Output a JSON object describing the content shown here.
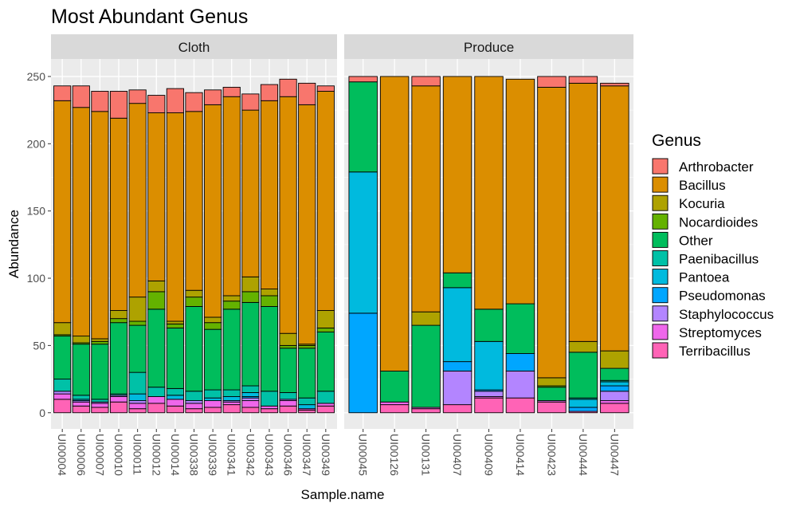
{
  "chart_data": {
    "type": "bar",
    "stacked": true,
    "title": "Most Abundant Genus",
    "xlabel": "Sample.name",
    "ylabel": "Abundance",
    "ylim": [
      -12,
      263
    ],
    "yticks": [
      0,
      50,
      100,
      150,
      200,
      250
    ],
    "grid": true,
    "legend": {
      "title": "Genus",
      "position": "right",
      "items": [
        {
          "name": "Arthrobacter",
          "color": "#F8766D"
        },
        {
          "name": "Bacillus",
          "color": "#DB8E00"
        },
        {
          "name": "Kocuria",
          "color": "#AEA200"
        },
        {
          "name": "Nocardioides",
          "color": "#64B200"
        },
        {
          "name": "Other",
          "color": "#00BD5C"
        },
        {
          "name": "Paenibacillus",
          "color": "#00C1A7"
        },
        {
          "name": "Pantoea",
          "color": "#00BADE"
        },
        {
          "name": "Pseudomonas",
          "color": "#00A6FF"
        },
        {
          "name": "Staphylococcus",
          "color": "#B385FF"
        },
        {
          "name": "Streptomyces",
          "color": "#EF67EB"
        },
        {
          "name": "Terribacillus",
          "color": "#FF63B6"
        }
      ]
    },
    "stack_order_bottom_to_top": [
      "Terribacillus",
      "Streptomyces",
      "Staphylococcus",
      "Pseudomonas",
      "Pantoea",
      "Paenibacillus",
      "Other",
      "Nocardioides",
      "Kocuria",
      "Bacillus",
      "Arthrobacter"
    ],
    "panels": [
      {
        "name": "Cloth",
        "samples": [
          {
            "sample": "UI00004",
            "Terribacillus": 10,
            "Streptomyces": 4,
            "Staphylococcus": 2,
            "Pseudomonas": 0,
            "Pantoea": 0,
            "Paenibacillus": 9,
            "Other": 32,
            "Nocardioides": 1,
            "Kocuria": 9,
            "Bacillus": 165,
            "Arthrobacter": 11
          },
          {
            "sample": "UI00006",
            "Terribacillus": 5,
            "Streptomyces": 3,
            "Staphylococcus": 1,
            "Pseudomonas": 0,
            "Pantoea": 1,
            "Paenibacillus": 3,
            "Other": 38,
            "Nocardioides": 1,
            "Kocuria": 5,
            "Bacillus": 170,
            "Arthrobacter": 16
          },
          {
            "sample": "UI00007",
            "Terribacillus": 4,
            "Streptomyces": 3,
            "Staphylococcus": 1,
            "Pseudomonas": 0,
            "Pantoea": 0,
            "Paenibacillus": 2,
            "Other": 41,
            "Nocardioides": 2,
            "Kocuria": 2,
            "Bacillus": 169,
            "Arthrobacter": 15
          },
          {
            "sample": "UI00010",
            "Terribacillus": 8,
            "Streptomyces": 4,
            "Staphylococcus": 1,
            "Pseudomonas": 0,
            "Pantoea": 0,
            "Paenibacillus": 1,
            "Other": 53,
            "Nocardioides": 3,
            "Kocuria": 6,
            "Bacillus": 143,
            "Arthrobacter": 20
          },
          {
            "sample": "UI00011",
            "Terribacillus": 3,
            "Streptomyces": 4,
            "Staphylococcus": 2,
            "Pseudomonas": 0,
            "Pantoea": 5,
            "Paenibacillus": 16,
            "Other": 35,
            "Nocardioides": 3,
            "Kocuria": 18,
            "Bacillus": 144,
            "Arthrobacter": 10
          },
          {
            "sample": "UI00012",
            "Terribacillus": 7,
            "Streptomyces": 5,
            "Staphylococcus": 0,
            "Pseudomonas": 0,
            "Pantoea": 0,
            "Paenibacillus": 7,
            "Other": 58,
            "Nocardioides": 13,
            "Kocuria": 8,
            "Bacillus": 125,
            "Arthrobacter": 13
          },
          {
            "sample": "UI00014",
            "Terribacillus": 5,
            "Streptomyces": 5,
            "Staphylococcus": 0,
            "Pseudomonas": 0,
            "Pantoea": 3,
            "Paenibacillus": 5,
            "Other": 45,
            "Nocardioides": 3,
            "Kocuria": 2,
            "Bacillus": 155,
            "Arthrobacter": 18
          },
          {
            "sample": "UI00338",
            "Terribacillus": 3,
            "Streptomyces": 4,
            "Staphylococcus": 2,
            "Pseudomonas": 0,
            "Pantoea": 0,
            "Paenibacillus": 7,
            "Other": 63,
            "Nocardioides": 7,
            "Kocuria": 5,
            "Bacillus": 133,
            "Arthrobacter": 14
          },
          {
            "sample": "UI00339",
            "Terribacillus": 4,
            "Streptomyces": 5,
            "Staphylococcus": 0,
            "Pseudomonas": 0,
            "Pantoea": 2,
            "Paenibacillus": 6,
            "Other": 45,
            "Nocardioides": 5,
            "Kocuria": 4,
            "Bacillus": 158,
            "Arthrobacter": 11
          },
          {
            "sample": "UI00341",
            "Terribacillus": 6,
            "Streptomyces": 2,
            "Staphylococcus": 1,
            "Pseudomonas": 0,
            "Pantoea": 3,
            "Paenibacillus": 5,
            "Other": 60,
            "Nocardioides": 6,
            "Kocuria": 4,
            "Bacillus": 148,
            "Arthrobacter": 7
          },
          {
            "sample": "UI00342",
            "Terribacillus": 4,
            "Streptomyces": 5,
            "Staphylococcus": 2,
            "Pseudomonas": 1,
            "Pantoea": 3,
            "Paenibacillus": 5,
            "Other": 62,
            "Nocardioides": 8,
            "Kocuria": 11,
            "Bacillus": 124,
            "Arthrobacter": 12
          },
          {
            "sample": "UI00343",
            "Terribacillus": 3,
            "Streptomyces": 2,
            "Staphylococcus": 0,
            "Pseudomonas": 0,
            "Pantoea": 0,
            "Paenibacillus": 11,
            "Other": 63,
            "Nocardioides": 8,
            "Kocuria": 5,
            "Bacillus": 140,
            "Arthrobacter": 12
          },
          {
            "sample": "UI00346",
            "Terribacillus": 5,
            "Streptomyces": 4,
            "Staphylococcus": 1,
            "Pseudomonas": 0,
            "Pantoea": 0,
            "Paenibacillus": 5,
            "Other": 33,
            "Nocardioides": 2,
            "Kocuria": 9,
            "Bacillus": 176,
            "Arthrobacter": 13
          },
          {
            "sample": "UI00347",
            "Terribacillus": 2,
            "Streptomyces": 1,
            "Staphylococcus": 0,
            "Pseudomonas": 0,
            "Pantoea": 3,
            "Paenibacillus": 5,
            "Other": 37,
            "Nocardioides": 2,
            "Kocuria": 1,
            "Bacillus": 178,
            "Arthrobacter": 16
          },
          {
            "sample": "UI00349",
            "Terribacillus": 5,
            "Streptomyces": 2,
            "Staphylococcus": 0,
            "Pseudomonas": 0,
            "Pantoea": 0,
            "Paenibacillus": 9,
            "Other": 44,
            "Nocardioides": 3,
            "Kocuria": 13,
            "Bacillus": 163,
            "Arthrobacter": 4
          }
        ]
      },
      {
        "name": "Produce",
        "samples": [
          {
            "sample": "UI00045",
            "Terribacillus": 0,
            "Streptomyces": 0,
            "Staphylococcus": 0,
            "Pseudomonas": 74,
            "Pantoea": 105,
            "Paenibacillus": 0,
            "Other": 67,
            "Nocardioides": 0,
            "Kocuria": 0,
            "Bacillus": 0,
            "Arthrobacter": 4
          },
          {
            "sample": "UI00126",
            "Terribacillus": 6,
            "Streptomyces": 2,
            "Staphylococcus": 0,
            "Pseudomonas": 0,
            "Pantoea": 0,
            "Paenibacillus": 0,
            "Other": 23,
            "Nocardioides": 0,
            "Kocuria": 0,
            "Bacillus": 219,
            "Arthrobacter": 0
          },
          {
            "sample": "UI00131",
            "Terribacillus": 3,
            "Streptomyces": 1,
            "Staphylococcus": 0,
            "Pseudomonas": 0,
            "Pantoea": 0,
            "Paenibacillus": 0,
            "Other": 61,
            "Nocardioides": 0,
            "Kocuria": 10,
            "Bacillus": 168,
            "Arthrobacter": 7
          },
          {
            "sample": "UI00407",
            "Terribacillus": 6,
            "Streptomyces": 0,
            "Staphylococcus": 25,
            "Pseudomonas": 7,
            "Pantoea": 55,
            "Paenibacillus": 0,
            "Other": 11,
            "Nocardioides": 0,
            "Kocuria": 0,
            "Bacillus": 146,
            "Arthrobacter": 0
          },
          {
            "sample": "UI00409",
            "Terribacillus": 11,
            "Streptomyces": 1,
            "Staphylococcus": 4,
            "Pseudomonas": 1,
            "Pantoea": 36,
            "Paenibacillus": 0,
            "Other": 24,
            "Nocardioides": 0,
            "Kocuria": 0,
            "Bacillus": 173,
            "Arthrobacter": 0
          },
          {
            "sample": "UI00414",
            "Terribacillus": 11,
            "Streptomyces": 0,
            "Staphylococcus": 20,
            "Pseudomonas": 13,
            "Pantoea": 0,
            "Paenibacillus": 0,
            "Other": 37,
            "Nocardioides": 0,
            "Kocuria": 0,
            "Bacillus": 167,
            "Arthrobacter": 0
          },
          {
            "sample": "UI00423",
            "Terribacillus": 8,
            "Streptomyces": 1,
            "Staphylococcus": 0,
            "Pseudomonas": 0,
            "Pantoea": 0,
            "Paenibacillus": 0,
            "Other": 10,
            "Nocardioides": 1,
            "Kocuria": 6,
            "Bacillus": 216,
            "Arthrobacter": 8
          },
          {
            "sample": "UI00444",
            "Terribacillus": 1,
            "Streptomyces": 0,
            "Staphylococcus": 0,
            "Pseudomonas": 3,
            "Pantoea": 6,
            "Paenibacillus": 1,
            "Other": 34,
            "Nocardioides": 0,
            "Kocuria": 8,
            "Bacillus": 192,
            "Arthrobacter": 5
          },
          {
            "sample": "UI00447",
            "Terribacillus": 7,
            "Streptomyces": 2,
            "Staphylococcus": 7,
            "Pseudomonas": 4,
            "Pantoea": 3,
            "Paenibacillus": 1,
            "Other": 9,
            "Nocardioides": 0,
            "Kocuria": 13,
            "Bacillus": 197,
            "Arthrobacter": 2
          }
        ]
      }
    ]
  }
}
